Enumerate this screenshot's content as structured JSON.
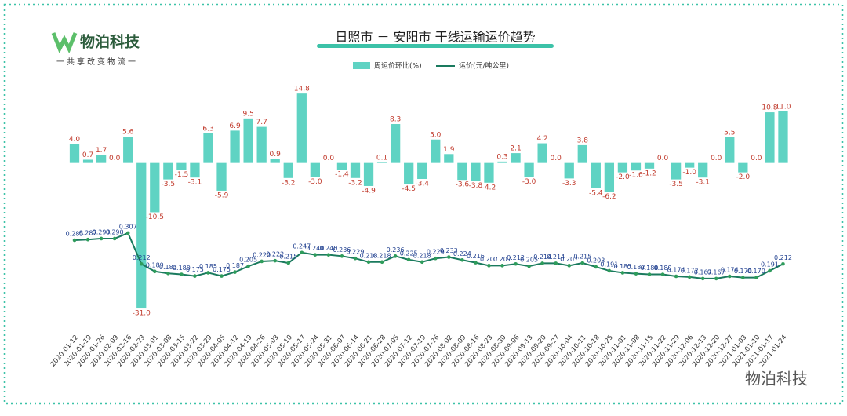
{
  "header": {
    "logo": "物泊科技",
    "slogan": "一共享改变物流一",
    "watermark": "物泊科技"
  },
  "chart_data": {
    "type": "bar-line",
    "title": "日照市 － 安阳市 干线运输运价趋势",
    "categories": [
      "2020-01-12",
      "2020-01-19",
      "2020-01-26",
      "2020-02-09",
      "2020-02-16",
      "2020-02-23",
      "2020-03-01",
      "2020-03-08",
      "2020-03-15",
      "2020-03-22",
      "2020-03-29",
      "2020-04-05",
      "2020-04-12",
      "2020-04-19",
      "2020-04-26",
      "2020-05-03",
      "2020-05-10",
      "2020-05-17",
      "2020-05-24",
      "2020-05-31",
      "2020-06-07",
      "2020-06-14",
      "2020-06-21",
      "2020-06-28",
      "2020-07-05",
      "2020-07-12",
      "2020-07-19",
      "2020-07-26",
      "2020-08-02",
      "2020-08-09",
      "2020-08-16",
      "2020-08-23",
      "2020-08-30",
      "2020-09-06",
      "2020-09-13",
      "2020-09-20",
      "2020-09-27",
      "2020-10-04",
      "2020-10-11",
      "2020-10-18",
      "2020-10-25",
      "2020-11-01",
      "2020-11-08",
      "2020-11-15",
      "2020-11-22",
      "2020-11-29",
      "2020-12-06",
      "2020-12-13",
      "2020-12-20",
      "2020-12-27",
      "2021-01-03",
      "2021-01-10",
      "2021-01-17",
      "2021-01-24"
    ],
    "ylim": [
      -33,
      17
    ],
    "y2lim": [
      0.046,
      0.768
    ],
    "series": [
      {
        "name": "周运价环比(%)",
        "color": "#5fd3c3",
        "label_color": "#c0392b",
        "values": [
          4.0,
          0.7,
          1.7,
          0.0,
          5.6,
          -31.0,
          -10.5,
          -3.5,
          -1.5,
          -3.1,
          6.3,
          -5.9,
          6.9,
          9.5,
          7.7,
          0.9,
          -3.2,
          14.8,
          -3.0,
          0.0,
          -1.4,
          -3.2,
          -4.9,
          0.1,
          8.3,
          -4.5,
          -3.4,
          5.0,
          1.9,
          -3.6,
          -3.8,
          -4.2,
          0.3,
          2.1,
          -3.0,
          4.2,
          0.0,
          -3.3,
          3.8,
          -5.4,
          -6.2,
          -2.0,
          -1.6,
          -1.2,
          0.0,
          -3.5,
          -1.0,
          -3.1,
          0.0,
          5.5,
          -2.0,
          0.0,
          10.8,
          11.0
        ],
        "value_labels": [
          "4.0",
          "0.7",
          "1.7",
          "0.0",
          "5.6",
          "-31.0",
          "-10.5",
          "-3.5",
          "-1.5",
          "-3.1",
          "6.3",
          "-5.9",
          "6.9",
          "9.5",
          "7.7",
          "0.9",
          "-3.2",
          "14.8",
          "-3.0",
          "0.0",
          "-1.4",
          "-3.2",
          "-4.9",
          "0.1",
          "8.3",
          "-4.5",
          "-3.4",
          "5.0",
          "1.9",
          "-3.6",
          "-3.8",
          "-4.2",
          "0.3",
          "2.1",
          "-3.0",
          "4.2",
          "0.0",
          "-3.3",
          "3.8",
          "-5.4",
          "-6.2",
          "-2.0",
          "-1.6",
          "-1.2",
          "0.0",
          "-3.5",
          "-1.0",
          "-3.1",
          "0.0",
          "5.5",
          "-2.0",
          "0.0",
          "10.8",
          "11.0"
        ]
      },
      {
        "name": "运价(元/吨公里)",
        "color": "#1a7a5e",
        "axis": "y2",
        "label_color": "#1f3f8f",
        "values": [
          0.285,
          0.287,
          0.29,
          0.29,
          0.307,
          0.212,
          0.189,
          0.183,
          0.18,
          0.175,
          0.185,
          0.175,
          0.187,
          0.205,
          0.22,
          0.222,
          0.215,
          0.247,
          0.24,
          0.24,
          0.236,
          0.229,
          0.218,
          0.218,
          0.236,
          0.225,
          0.218,
          0.229,
          0.233,
          0.224,
          0.216,
          0.207,
          0.207,
          0.212,
          0.205,
          0.214,
          0.214,
          0.207,
          0.215,
          0.203,
          0.191,
          0.185,
          0.182,
          0.18,
          0.18,
          0.174,
          0.172,
          0.167,
          0.167,
          0.174,
          0.17,
          0.17,
          0.191,
          0.212
        ],
        "value_labels": [
          "0.285",
          "0.287",
          "0.290",
          "0.290",
          "0.307",
          "0.212",
          "0.189",
          "0.183",
          "0.180",
          "0.175",
          "0.185",
          "0.175",
          "0.187",
          "0.205",
          "0.220",
          "0.222",
          "0.215",
          "0.247",
          "0.240",
          "0.240",
          "0.236",
          "0.229",
          "0.218",
          "0.218",
          "0.236",
          "0.225",
          "0.218",
          "0.229",
          "0.233",
          "0.224",
          "0.216",
          "0.207",
          "0.207",
          "0.212",
          "0.205",
          "0.214",
          "0.214",
          "0.207",
          "0.215",
          "0.203",
          "0.191",
          "0.185",
          "0.182",
          "0.180",
          "0.180",
          "0.174",
          "0.172",
          "0.167",
          "0.167",
          "0.174",
          "0.170",
          "0.170",
          "0.191",
          "0.212"
        ]
      }
    ]
  }
}
